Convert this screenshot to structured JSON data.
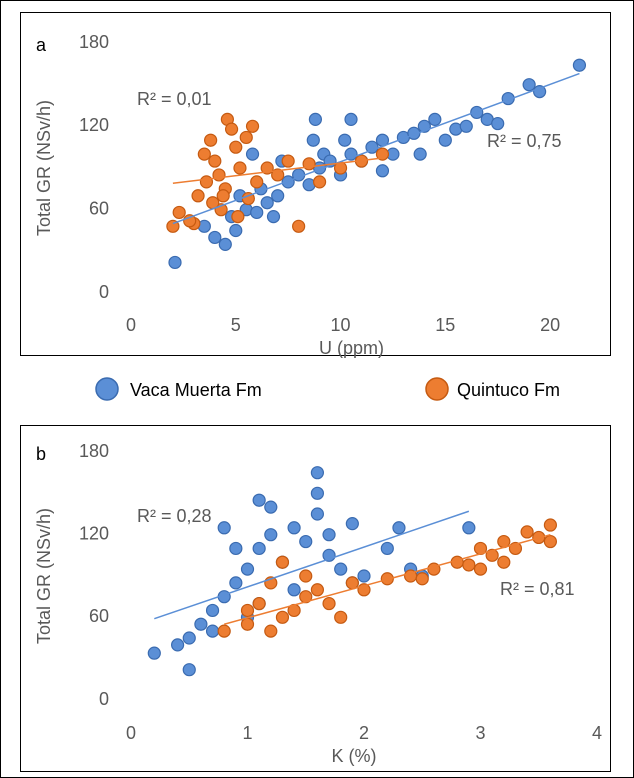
{
  "chart_data": [
    {
      "type": "scatter",
      "panel_label": "a",
      "xlabel": "U (ppm)",
      "ylabel": "Total GR (NSv/h)",
      "xlim": [
        0,
        22
      ],
      "ylim": [
        0,
        180
      ],
      "xticks": [
        0,
        5,
        10,
        15,
        20
      ],
      "yticks": [
        0,
        60,
        120,
        180
      ],
      "series": [
        {
          "name": "Vaca Muerta Fm",
          "color": "#5b8fd6",
          "x": [
            2.1,
            4.5,
            4,
            5,
            3.5,
            4.8,
            5.5,
            6,
            6.5,
            5.2,
            6.2,
            7,
            7.5,
            8,
            8.5,
            9,
            9.2,
            8.7,
            9.5,
            10,
            10.5,
            11,
            11.5,
            12,
            12.5,
            13,
            13.5,
            14,
            14.5,
            15,
            15.5,
            16,
            16.5,
            17,
            17.5,
            18,
            19,
            19.5,
            21.4,
            8.8,
            10.5,
            5.8,
            7.2,
            12,
            6.8,
            10.2,
            13.8
          ],
          "values": [
            22,
            35,
            40,
            45,
            48,
            55,
            60,
            58,
            65,
            70,
            75,
            70,
            80,
            85,
            78,
            90,
            100,
            110,
            95,
            85,
            100,
            95,
            105,
            110,
            100,
            112,
            115,
            120,
            125,
            110,
            118,
            120,
            130,
            125,
            122,
            140,
            150,
            145,
            164,
            125,
            125,
            100,
            95,
            88,
            55,
            110,
            100
          ],
          "trendline": {
            "x": [
              2,
              21.4
            ],
            "y": [
              50,
              158
            ],
            "r2_label": "R² = 0,75"
          }
        },
        {
          "name": "Quintuco Fm",
          "color": "#ed7d31",
          "x": [
            2,
            2.3,
            3,
            3.2,
            3.5,
            3.8,
            4,
            4.2,
            4.5,
            4.6,
            4.8,
            5,
            5.2,
            5.5,
            5.8,
            4.3,
            3.6,
            6,
            6.5,
            7,
            7.5,
            8,
            8.5,
            9,
            10,
            11,
            12,
            3.9,
            5.1,
            4.4,
            2.8,
            5.6
          ],
          "values": [
            48,
            58,
            50,
            70,
            100,
            110,
            95,
            85,
            75,
            125,
            118,
            105,
            90,
            112,
            120,
            60,
            80,
            80,
            90,
            85,
            95,
            48,
            93,
            80,
            90,
            95,
            100,
            65,
            55,
            70,
            52,
            68
          ],
          "trendline": {
            "x": [
              2,
              11.9
            ],
            "y": [
              79,
              97
            ],
            "r2_label": "R² = 0,01"
          }
        }
      ]
    },
    {
      "type": "scatter",
      "panel_label": "b",
      "xlabel": "K (%)",
      "ylabel": "Total GR (NSv/h)",
      "xlim": [
        0,
        4
      ],
      "ylim": [
        0,
        180
      ],
      "xticks": [
        0,
        1,
        2,
        3,
        4
      ],
      "yticks": [
        0,
        60,
        120,
        180
      ],
      "series": [
        {
          "name": "Vaca Muerta Fm",
          "color": "#5b8fd6",
          "x": [
            0.2,
            0.5,
            0.4,
            0.5,
            0.6,
            0.7,
            0.8,
            0.9,
            1,
            1,
            1.1,
            1.1,
            1.2,
            1.2,
            1.3,
            1.4,
            1.5,
            1.6,
            1.6,
            1.6,
            1.7,
            1.8,
            1.9,
            1.9,
            2,
            2.2,
            2.3,
            2.4,
            2.5,
            2.9,
            0.8,
            0.9,
            1.4,
            1.1,
            1.7,
            0.7
          ],
          "values": [
            34,
            22,
            40,
            45,
            55,
            65,
            75,
            85,
            95,
            60,
            110,
            145,
            140,
            120,
            100,
            125,
            115,
            165,
            150,
            135,
            105,
            95,
            128,
            85,
            90,
            110,
            125,
            95,
            90,
            125,
            125,
            110,
            80,
            70,
            120,
            50
          ],
          "trendline": {
            "x": [
              0.2,
              2.9
            ],
            "y": [
              59,
              137
            ],
            "r2_label": "R² = 0,28"
          }
        },
        {
          "name": "Quintuco Fm",
          "color": "#ed7d31",
          "x": [
            0.8,
            1,
            1,
            1.1,
            1.2,
            1.3,
            1.4,
            1.5,
            1.6,
            1.7,
            1.8,
            1.9,
            2,
            2.2,
            2.4,
            2.6,
            2.8,
            3,
            3.1,
            3.2,
            3.3,
            3.4,
            3.5,
            3.6,
            3.6,
            2.9,
            1.5,
            1.2,
            1.3,
            2.5,
            3.2,
            3
          ],
          "values": [
            50,
            55,
            65,
            70,
            50,
            60,
            65,
            75,
            80,
            70,
            60,
            85,
            80,
            88,
            90,
            95,
            100,
            110,
            105,
            115,
            110,
            122,
            118,
            127,
            115,
            98,
            90,
            85,
            100,
            88,
            100,
            95
          ],
          "trendline": {
            "x": [
              0.8,
              3.6
            ],
            "y": [
              55,
              120
            ],
            "r2_label": "R² = 0,81"
          }
        }
      ]
    }
  ]
}
